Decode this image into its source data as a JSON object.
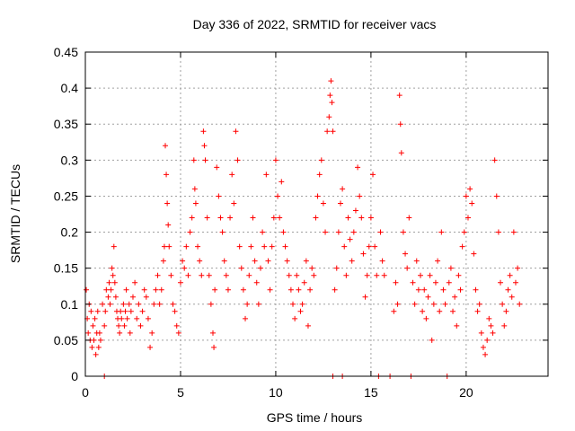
{
  "chart_data": {
    "type": "scatter",
    "title": "Day 336 of 2022, SRMTID for receiver vacs",
    "xlabel": "GPS time / hours",
    "ylabel": "SRMTID / TECUs",
    "xlim": [
      0,
      24.3
    ],
    "ylim": [
      0,
      0.45
    ],
    "x_ticks": [
      0,
      5,
      10,
      15,
      20
    ],
    "x_tick_labels": [
      "0",
      "5",
      "10",
      "15",
      "20"
    ],
    "y_ticks": [
      0,
      0.05,
      0.1,
      0.15,
      0.2,
      0.25,
      0.3,
      0.35,
      0.4,
      0.45
    ],
    "y_tick_labels": [
      "0",
      "0.05",
      "0.1",
      "0.15",
      "0.2",
      "0.25",
      "0.3",
      "0.35",
      "0.4",
      "0.45"
    ],
    "grid": true,
    "marker": "plus",
    "color": "#ff0000",
    "series": [
      {
        "name": "SRMTID",
        "points": [
          [
            0.05,
            0.12
          ],
          [
            0.1,
            0.08
          ],
          [
            0.15,
            0.06
          ],
          [
            0.2,
            0.1
          ],
          [
            0.25,
            0.05
          ],
          [
            0.3,
            0.09
          ],
          [
            0.35,
            0.04
          ],
          [
            0.4,
            0.07
          ],
          [
            0.45,
            0.05
          ],
          [
            0.5,
            0.08
          ],
          [
            0.55,
            0.03
          ],
          [
            0.6,
            0.06
          ],
          [
            0.65,
            0.09
          ],
          [
            0.7,
            0.04
          ],
          [
            0.75,
            0.06
          ],
          [
            0.8,
            0.05
          ],
          [
            0.9,
            0.1
          ],
          [
            1.0,
            0.07
          ],
          [
            1.0,
            0.0
          ],
          [
            1.05,
            0.09
          ],
          [
            1.1,
            0.12
          ],
          [
            1.2,
            0.11
          ],
          [
            1.25,
            0.13
          ],
          [
            1.3,
            0.1
          ],
          [
            1.35,
            0.12
          ],
          [
            1.4,
            0.15
          ],
          [
            1.45,
            0.14
          ],
          [
            1.5,
            0.18
          ],
          [
            1.55,
            0.13
          ],
          [
            1.6,
            0.11
          ],
          [
            1.65,
            0.09
          ],
          [
            1.7,
            0.08
          ],
          [
            1.75,
            0.07
          ],
          [
            1.8,
            0.06
          ],
          [
            1.85,
            0.09
          ],
          [
            1.9,
            0.08
          ],
          [
            2.0,
            0.1
          ],
          [
            2.05,
            0.07
          ],
          [
            2.1,
            0.09
          ],
          [
            2.15,
            0.12
          ],
          [
            2.2,
            0.08
          ],
          [
            2.3,
            0.1
          ],
          [
            2.35,
            0.06
          ],
          [
            2.4,
            0.09
          ],
          [
            2.5,
            0.11
          ],
          [
            2.6,
            0.13
          ],
          [
            2.7,
            0.08
          ],
          [
            2.8,
            0.1
          ],
          [
            2.9,
            0.07
          ],
          [
            3.0,
            0.09
          ],
          [
            3.1,
            0.12
          ],
          [
            3.2,
            0.11
          ],
          [
            3.3,
            0.08
          ],
          [
            3.4,
            0.04
          ],
          [
            3.5,
            0.06
          ],
          [
            3.6,
            0.1
          ],
          [
            3.7,
            0.12
          ],
          [
            3.8,
            0.14
          ],
          [
            3.9,
            0.1
          ],
          [
            4.0,
            0.12
          ],
          [
            4.1,
            0.16
          ],
          [
            4.15,
            0.18
          ],
          [
            4.2,
            0.32
          ],
          [
            4.25,
            0.28
          ],
          [
            4.3,
            0.24
          ],
          [
            4.35,
            0.21
          ],
          [
            4.4,
            0.18
          ],
          [
            4.5,
            0.14
          ],
          [
            4.6,
            0.1
          ],
          [
            4.7,
            0.09
          ],
          [
            4.8,
            0.07
          ],
          [
            4.9,
            0.06
          ],
          [
            5.0,
            0.13
          ],
          [
            5.1,
            0.16
          ],
          [
            5.2,
            0.15
          ],
          [
            5.3,
            0.18
          ],
          [
            5.4,
            0.14
          ],
          [
            5.5,
            0.2
          ],
          [
            5.6,
            0.22
          ],
          [
            5.7,
            0.3
          ],
          [
            5.75,
            0.26
          ],
          [
            5.8,
            0.24
          ],
          [
            5.9,
            0.18
          ],
          [
            6.0,
            0.16
          ],
          [
            6.1,
            0.14
          ],
          [
            6.2,
            0.34
          ],
          [
            6.25,
            0.32
          ],
          [
            6.3,
            0.3
          ],
          [
            6.4,
            0.22
          ],
          [
            6.5,
            0.14
          ],
          [
            6.6,
            0.1
          ],
          [
            6.7,
            0.06
          ],
          [
            6.75,
            0.04
          ],
          [
            6.8,
            0.12
          ],
          [
            6.9,
            0.29
          ],
          [
            7.0,
            0.25
          ],
          [
            7.1,
            0.22
          ],
          [
            7.2,
            0.2
          ],
          [
            7.3,
            0.16
          ],
          [
            7.4,
            0.14
          ],
          [
            7.5,
            0.12
          ],
          [
            7.6,
            0.22
          ],
          [
            7.7,
            0.28
          ],
          [
            7.8,
            0.24
          ],
          [
            7.9,
            0.34
          ],
          [
            8.0,
            0.3
          ],
          [
            8.1,
            0.18
          ],
          [
            8.2,
            0.15
          ],
          [
            8.3,
            0.12
          ],
          [
            8.4,
            0.08
          ],
          [
            8.5,
            0.1
          ],
          [
            8.6,
            0.14
          ],
          [
            8.7,
            0.18
          ],
          [
            8.8,
            0.22
          ],
          [
            8.9,
            0.16
          ],
          [
            9.0,
            0.13
          ],
          [
            9.1,
            0.1
          ],
          [
            9.2,
            0.15
          ],
          [
            9.3,
            0.2
          ],
          [
            9.4,
            0.18
          ],
          [
            9.5,
            0.28
          ],
          [
            9.6,
            0.16
          ],
          [
            9.7,
            0.12
          ],
          [
            9.8,
            0.18
          ],
          [
            9.9,
            0.22
          ],
          [
            10.0,
            0.3
          ],
          [
            10.1,
            0.25
          ],
          [
            10.2,
            0.22
          ],
          [
            10.3,
            0.27
          ],
          [
            10.4,
            0.2
          ],
          [
            10.5,
            0.18
          ],
          [
            10.6,
            0.16
          ],
          [
            10.7,
            0.14
          ],
          [
            10.8,
            0.12
          ],
          [
            10.9,
            0.1
          ],
          [
            11.0,
            0.08
          ],
          [
            11.1,
            0.14
          ],
          [
            11.2,
            0.12
          ],
          [
            11.3,
            0.09
          ],
          [
            11.4,
            0.1
          ],
          [
            11.5,
            0.13
          ],
          [
            11.6,
            0.16
          ],
          [
            11.7,
            0.07
          ],
          [
            11.8,
            0.12
          ],
          [
            11.9,
            0.15
          ],
          [
            12.0,
            0.14
          ],
          [
            12.1,
            0.22
          ],
          [
            12.2,
            0.25
          ],
          [
            12.3,
            0.28
          ],
          [
            12.4,
            0.3
          ],
          [
            12.5,
            0.24
          ],
          [
            12.6,
            0.2
          ],
          [
            12.7,
            0.34
          ],
          [
            12.8,
            0.36
          ],
          [
            12.85,
            0.39
          ],
          [
            12.9,
            0.41
          ],
          [
            12.95,
            0.38
          ],
          [
            13.0,
            0.34
          ],
          [
            13.0,
            0.0
          ],
          [
            13.1,
            0.12
          ],
          [
            13.2,
            0.15
          ],
          [
            13.3,
            0.2
          ],
          [
            13.4,
            0.24
          ],
          [
            13.5,
            0.26
          ],
          [
            13.5,
            0.0
          ],
          [
            13.6,
            0.18
          ],
          [
            13.7,
            0.14
          ],
          [
            13.8,
            0.22
          ],
          [
            13.9,
            0.19
          ],
          [
            14.0,
            0.16
          ],
          [
            14.1,
            0.2
          ],
          [
            14.2,
            0.23
          ],
          [
            14.3,
            0.29
          ],
          [
            14.4,
            0.25
          ],
          [
            14.5,
            0.22
          ],
          [
            14.6,
            0.17
          ],
          [
            14.7,
            0.11
          ],
          [
            14.8,
            0.14
          ],
          [
            14.9,
            0.18
          ],
          [
            15.0,
            0.22
          ],
          [
            15.1,
            0.28
          ],
          [
            15.2,
            0.18
          ],
          [
            15.3,
            0.14
          ],
          [
            15.4,
            0.0
          ],
          [
            15.5,
            0.2
          ],
          [
            15.6,
            0.16
          ],
          [
            15.7,
            0.14
          ],
          [
            16.0,
            0.0
          ],
          [
            16.2,
            0.09
          ],
          [
            16.3,
            0.13
          ],
          [
            16.4,
            0.1
          ],
          [
            16.5,
            0.39
          ],
          [
            16.55,
            0.35
          ],
          [
            16.6,
            0.31
          ],
          [
            16.7,
            0.2
          ],
          [
            16.8,
            0.17
          ],
          [
            16.9,
            0.15
          ],
          [
            17.0,
            0.22
          ],
          [
            17.1,
            0.0
          ],
          [
            17.2,
            0.13
          ],
          [
            17.3,
            0.1
          ],
          [
            17.4,
            0.16
          ],
          [
            17.5,
            0.12
          ],
          [
            17.6,
            0.14
          ],
          [
            17.7,
            0.09
          ],
          [
            17.8,
            0.12
          ],
          [
            17.9,
            0.08
          ],
          [
            18.0,
            0.11
          ],
          [
            18.1,
            0.14
          ],
          [
            18.2,
            0.05
          ],
          [
            18.3,
            0.1
          ],
          [
            18.4,
            0.13
          ],
          [
            18.5,
            0.16
          ],
          [
            18.6,
            0.09
          ],
          [
            18.7,
            0.2
          ],
          [
            18.8,
            0.12
          ],
          [
            18.9,
            0.1
          ],
          [
            19.0,
            0.0
          ],
          [
            19.1,
            0.13
          ],
          [
            19.2,
            0.15
          ],
          [
            19.3,
            0.09
          ],
          [
            19.4,
            0.11
          ],
          [
            19.5,
            0.07
          ],
          [
            19.6,
            0.14
          ],
          [
            19.7,
            0.12
          ],
          [
            19.8,
            0.18
          ],
          [
            19.9,
            0.2
          ],
          [
            20.0,
            0.25
          ],
          [
            20.1,
            0.22
          ],
          [
            20.2,
            0.26
          ],
          [
            20.3,
            0.24
          ],
          [
            20.4,
            0.17
          ],
          [
            20.5,
            0.12
          ],
          [
            20.6,
            0.09
          ],
          [
            20.7,
            0.1
          ],
          [
            20.8,
            0.06
          ],
          [
            20.9,
            0.04
          ],
          [
            21.0,
            0.03
          ],
          [
            21.1,
            0.05
          ],
          [
            21.2,
            0.08
          ],
          [
            21.3,
            0.07
          ],
          [
            21.4,
            0.06
          ],
          [
            21.5,
            0.3
          ],
          [
            21.6,
            0.25
          ],
          [
            21.7,
            0.2
          ],
          [
            21.8,
            0.13
          ],
          [
            21.9,
            0.1
          ],
          [
            22.0,
            0.07
          ],
          [
            22.1,
            0.09
          ],
          [
            22.2,
            0.12
          ],
          [
            22.3,
            0.14
          ],
          [
            22.4,
            0.11
          ],
          [
            22.5,
            0.2
          ],
          [
            22.6,
            0.13
          ],
          [
            22.7,
            0.15
          ],
          [
            22.8,
            0.1
          ]
        ]
      }
    ]
  }
}
